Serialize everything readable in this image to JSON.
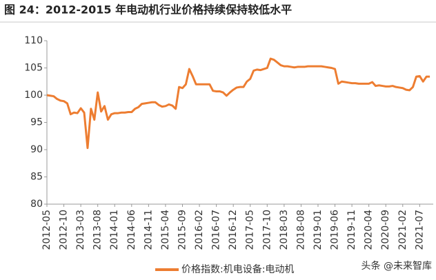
{
  "chart_data": {
    "type": "line",
    "title": "图 24：2012-2015 年电动机行业价格持续保持较低水平",
    "watermark": "头条 @未来智库",
    "x": [
      "2012-05",
      "2012-06",
      "2012-07",
      "2012-08",
      "2012-09",
      "2012-10",
      "2012-11",
      "2012-12",
      "2013-01",
      "2013-02",
      "2013-03",
      "2013-04",
      "2013-05",
      "2013-06",
      "2013-07",
      "2013-08",
      "2013-09",
      "2013-10",
      "2013-11",
      "2013-12",
      "2014-01",
      "2014-02",
      "2014-03",
      "2014-04",
      "2014-05",
      "2014-06",
      "2014-07",
      "2014-08",
      "2014-09",
      "2014-10",
      "2014-11",
      "2014-12",
      "2015-01",
      "2015-02",
      "2015-03",
      "2015-04",
      "2015-05",
      "2015-06",
      "2015-07",
      "2015-08",
      "2015-09",
      "2015-10",
      "2015-11",
      "2015-12",
      "2016-01",
      "2016-02",
      "2016-03",
      "2016-04",
      "2016-05",
      "2016-06",
      "2016-07",
      "2016-08",
      "2016-09",
      "2016-10",
      "2016-11",
      "2016-12",
      "2017-01",
      "2017-02",
      "2017-03",
      "2017-04",
      "2017-05",
      "2017-06",
      "2017-07",
      "2017-08",
      "2017-09",
      "2017-10",
      "2017-11",
      "2017-12",
      "2018-01",
      "2018-02",
      "2018-03",
      "2018-04",
      "2018-05",
      "2018-06",
      "2018-07",
      "2018-08",
      "2018-09",
      "2018-10",
      "2018-11",
      "2018-12",
      "2019-01",
      "2019-02",
      "2019-03",
      "2019-04",
      "2019-05",
      "2019-06",
      "2019-07",
      "2019-08",
      "2019-09",
      "2019-10",
      "2019-11",
      "2019-12",
      "2020-01",
      "2020-02",
      "2020-03",
      "2020-04",
      "2020-05",
      "2020-06",
      "2020-07",
      "2020-08",
      "2020-09",
      "2020-10",
      "2020-11",
      "2020-12",
      "2021-01",
      "2021-02",
      "2021-03",
      "2021-04",
      "2021-05",
      "2021-06",
      "2021-07",
      "2021-08",
      "2021-09",
      "2021-10"
    ],
    "series": [
      {
        "name": "价格指数:机电设备:电动机",
        "color": "#ED7D31",
        "values": [
          100,
          99.9,
          99.8,
          99.3,
          99.0,
          98.9,
          98.5,
          96.5,
          96.8,
          96.7,
          97.6,
          96.8,
          90.3,
          97.5,
          95.5,
          100.5,
          97.0,
          98.0,
          95.5,
          96.5,
          96.7,
          96.7,
          96.8,
          96.8,
          96.9,
          96.9,
          97.5,
          97.8,
          98.4,
          98.5,
          98.6,
          98.7,
          98.7,
          98.2,
          97.9,
          98.0,
          98.3,
          98.1,
          97.5,
          101.5,
          101.3,
          102.0,
          104.8,
          103.5,
          102.0,
          102.0,
          102.0,
          102.0,
          102.0,
          100.8,
          100.7,
          100.7,
          100.5,
          99.9,
          100.5,
          101.0,
          101.4,
          101.5,
          101.5,
          102.5,
          103.0,
          104.5,
          104.7,
          104.6,
          104.8,
          105.0,
          106.7,
          106.5,
          106.0,
          105.5,
          105.3,
          105.3,
          105.2,
          105.1,
          105.2,
          105.2,
          105.2,
          105.3,
          105.3,
          105.3,
          105.3,
          105.3,
          105.2,
          105.1,
          105.0,
          104.8,
          102.1,
          102.5,
          102.4,
          102.3,
          102.2,
          102.2,
          102.1,
          102.1,
          102.1,
          102.1,
          102.4,
          101.7,
          101.8,
          101.7,
          101.6,
          101.6,
          101.7,
          101.5,
          101.4,
          101.3,
          101.0,
          100.9,
          101.5,
          103.4,
          103.5,
          102.5,
          103.4,
          103.4
        ]
      }
    ],
    "xlim": [
      "2012-05",
      "2021-11"
    ],
    "xticks": [
      "2012-05",
      "2012-10",
      "2013-03",
      "2013-08",
      "2014-01",
      "2014-06",
      "2014-11",
      "2015-04",
      "2015-09",
      "2016-02",
      "2016-07",
      "2016-12",
      "2017-05",
      "2017-10",
      "2018-03",
      "2018-08",
      "2019-01",
      "2019-06",
      "2019-11",
      "2020-04",
      "2020-09",
      "2021-02",
      "2021-07"
    ],
    "ylim": [
      80,
      110
    ],
    "yticks": [
      80,
      85,
      90,
      95,
      100,
      105,
      110
    ],
    "grid": false,
    "legend": "bottom"
  }
}
